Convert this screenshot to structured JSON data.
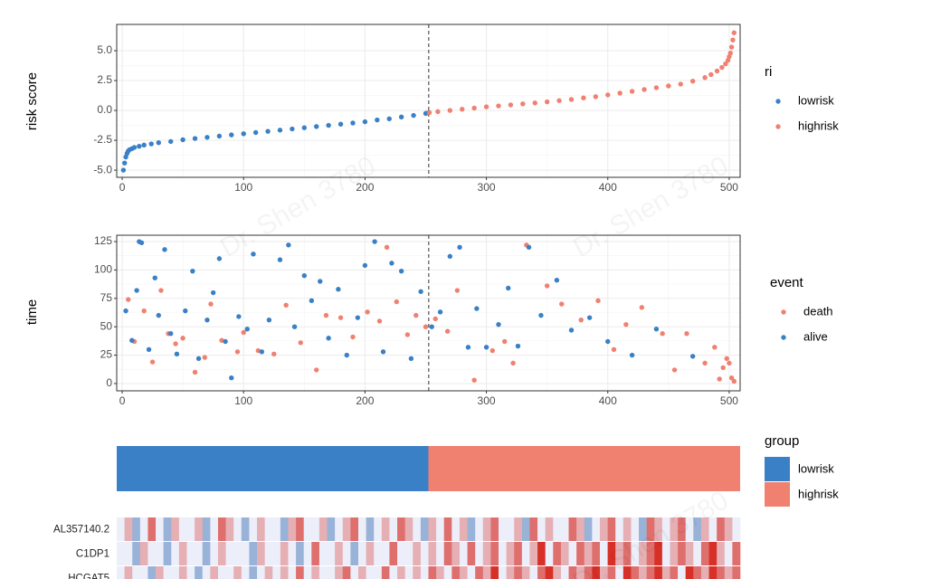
{
  "watermark": "Dr. Shen 3780",
  "chart_data": [
    {
      "type": "scatter",
      "y_label": "risk score",
      "legend_title": "ri",
      "xlim": [
        -4.5,
        509
      ],
      "ylim": [
        -5.6,
        7.2
      ],
      "xticks": [
        0,
        100,
        200,
        300,
        400,
        500
      ],
      "yticks": [
        {
          "value": -5,
          "label": "-5.0"
        },
        -2.5,
        {
          "value": 0,
          "label": "0.0"
        },
        2.5,
        {
          "value": 5,
          "label": "5.0"
        }
      ],
      "grid": true,
      "vline": 252.5,
      "series": [
        {
          "name": "lowrisk",
          "color": "#3a80c6",
          "x": [
            1,
            2,
            3,
            4,
            5,
            6,
            8,
            10,
            14,
            18,
            24,
            30,
            40,
            50,
            60,
            70,
            80,
            90,
            100,
            110,
            120,
            130,
            140,
            150,
            160,
            170,
            180,
            190,
            200,
            210,
            220,
            230,
            240,
            250,
            252
          ],
          "values": [
            -5.0,
            -4.4,
            -3.9,
            -3.6,
            -3.4,
            -3.3,
            -3.2,
            -3.1,
            -3.0,
            -2.9,
            -2.8,
            -2.7,
            -2.6,
            -2.45,
            -2.35,
            -2.25,
            -2.15,
            -2.05,
            -1.95,
            -1.85,
            -1.75,
            -1.65,
            -1.55,
            -1.45,
            -1.35,
            -1.25,
            -1.15,
            -1.05,
            -0.95,
            -0.8,
            -0.7,
            -0.55,
            -0.42,
            -0.25,
            -0.2
          ]
        },
        {
          "name": "highrisk",
          "color": "#f08070",
          "x": [
            253,
            260,
            270,
            280,
            290,
            300,
            310,
            320,
            330,
            340,
            350,
            360,
            370,
            380,
            390,
            400,
            410,
            420,
            430,
            440,
            450,
            460,
            470,
            480,
            485,
            490,
            494,
            497,
            499,
            500,
            501,
            502,
            503,
            504
          ],
          "values": [
            -0.18,
            -0.1,
            0.0,
            0.1,
            0.2,
            0.3,
            0.38,
            0.46,
            0.55,
            0.63,
            0.72,
            0.82,
            0.92,
            1.05,
            1.15,
            1.3,
            1.45,
            1.6,
            1.75,
            1.9,
            2.05,
            2.2,
            2.45,
            2.75,
            3.0,
            3.3,
            3.6,
            3.9,
            4.2,
            4.5,
            4.8,
            5.3,
            5.9,
            6.5
          ]
        }
      ]
    },
    {
      "type": "scatter",
      "y_label": "time",
      "legend_title": "event",
      "xlim": [
        -4.5,
        509
      ],
      "ylim": [
        -6.4,
        130.6
      ],
      "xticks": [
        0,
        100,
        200,
        300,
        400,
        500
      ],
      "yticks": [
        0,
        25,
        50,
        75,
        100,
        125
      ],
      "grid": true,
      "vline": 252.5,
      "series": [
        {
          "name": "death",
          "color": "#f08070",
          "x": [
            5,
            10,
            18,
            25,
            32,
            38,
            44,
            50,
            60,
            68,
            73,
            82,
            95,
            100,
            112,
            125,
            135,
            147,
            160,
            168,
            180,
            190,
            202,
            212,
            218,
            226,
            235,
            242,
            250,
            258,
            268,
            276,
            290,
            305,
            315,
            322,
            333,
            350,
            362,
            378,
            392,
            405,
            415,
            428,
            445,
            455,
            465,
            480,
            488,
            492,
            495,
            498,
            500,
            502,
            504
          ],
          "values": [
            74,
            37,
            64,
            19,
            82,
            44,
            35,
            40,
            10,
            23,
            70,
            38,
            28,
            45,
            29,
            26,
            69,
            36,
            12,
            60,
            58,
            41,
            63,
            55,
            120,
            72,
            43,
            60,
            50,
            57,
            46,
            82,
            3,
            29,
            37,
            18,
            122,
            86,
            70,
            56,
            73,
            30,
            52,
            67,
            44,
            12,
            44,
            18,
            32,
            4,
            14,
            22,
            18,
            5,
            2
          ]
        },
        {
          "name": "alive",
          "color": "#3a80c6",
          "x": [
            3,
            8,
            12,
            14,
            16,
            22,
            27,
            30,
            35,
            40,
            45,
            52,
            58,
            63,
            70,
            75,
            80,
            85,
            90,
            96,
            103,
            108,
            115,
            121,
            130,
            137,
            142,
            150,
            156,
            163,
            170,
            178,
            185,
            194,
            200,
            208,
            215,
            222,
            230,
            238,
            246,
            255,
            262,
            270,
            278,
            285,
            292,
            300,
            310,
            318,
            326,
            335,
            345,
            358,
            370,
            385,
            400,
            420,
            440,
            470
          ],
          "values": [
            64,
            38,
            82,
            125,
            124,
            30,
            93,
            60,
            118,
            44,
            26,
            64,
            99,
            22,
            56,
            80,
            110,
            37,
            5,
            59,
            48,
            114,
            28,
            56,
            109,
            122,
            50,
            95,
            73,
            90,
            40,
            83,
            25,
            58,
            104,
            125,
            28,
            106,
            99,
            22,
            81,
            50,
            63,
            112,
            120,
            32,
            66,
            32,
            52,
            84,
            33,
            120,
            60,
            91,
            47,
            58,
            37,
            25,
            48,
            24
          ]
        }
      ]
    },
    {
      "type": "group_bar",
      "legend_title": "group",
      "xlim": [
        0.5,
        504.5
      ],
      "segments": [
        {
          "name": "lowrisk",
          "color": "#3a80c6",
          "start": 0.5,
          "end": 252.5
        },
        {
          "name": "highrisk",
          "color": "#f08070",
          "start": 252.5,
          "end": 504.5
        }
      ]
    },
    {
      "type": "heatmap",
      "zlim": [
        -2,
        3
      ],
      "colors": [
        "#4575b4",
        "#eceefa",
        "#d73027"
      ],
      "rows": [
        {
          "name": "AL357140.2",
          "values": [
            0,
            1,
            -1,
            0,
            2,
            0,
            -1,
            1,
            0,
            0,
            1,
            -1,
            0,
            2,
            1,
            0,
            -1,
            0,
            1,
            0,
            0,
            -1,
            1,
            2,
            0,
            0,
            1,
            -1,
            0,
            1,
            2,
            0,
            -1,
            0,
            1,
            0,
            2,
            1,
            0,
            -1,
            1,
            0,
            2,
            0,
            1,
            -1,
            0,
            1,
            2,
            0,
            0,
            1,
            -1,
            2,
            0,
            1,
            0,
            0,
            2,
            1,
            -1,
            0,
            1,
            2,
            0,
            1,
            0,
            -1,
            2,
            1,
            0,
            1,
            2,
            0,
            -1,
            1,
            0,
            2,
            1,
            0
          ]
        },
        {
          "name": "C1DP1",
          "values": [
            0,
            0,
            -1,
            1,
            0,
            0,
            -1,
            0,
            1,
            0,
            0,
            -1,
            0,
            1,
            0,
            0,
            0,
            -1,
            1,
            0,
            0,
            1,
            0,
            -1,
            0,
            2,
            0,
            0,
            1,
            0,
            -1,
            0,
            1,
            0,
            0,
            2,
            0,
            0,
            1,
            0,
            1,
            0,
            2,
            1,
            0,
            2,
            0,
            1,
            2,
            0,
            1,
            2,
            0,
            1,
            3,
            0,
            2,
            1,
            0,
            2,
            1,
            2,
            0,
            3,
            1,
            2,
            0,
            1,
            2,
            3,
            0,
            1,
            2,
            1,
            0,
            2,
            3,
            1,
            0,
            2
          ]
        },
        {
          "name": "HCGAT5",
          "values": [
            0,
            1,
            0,
            0,
            -1,
            1,
            0,
            0,
            1,
            0,
            -1,
            0,
            1,
            0,
            0,
            1,
            0,
            -1,
            0,
            1,
            0,
            1,
            0,
            2,
            0,
            1,
            0,
            0,
            1,
            2,
            0,
            1,
            0,
            0,
            2,
            0,
            1,
            0,
            1,
            0,
            2,
            1,
            0,
            2,
            1,
            0,
            2,
            1,
            3,
            0,
            1,
            2,
            1,
            0,
            2,
            3,
            1,
            0,
            2,
            1,
            2,
            3,
            1,
            2,
            0,
            3,
            2,
            1,
            2,
            3,
            1,
            2,
            0,
            3,
            2,
            1,
            3,
            2,
            1,
            2
          ]
        }
      ]
    }
  ]
}
